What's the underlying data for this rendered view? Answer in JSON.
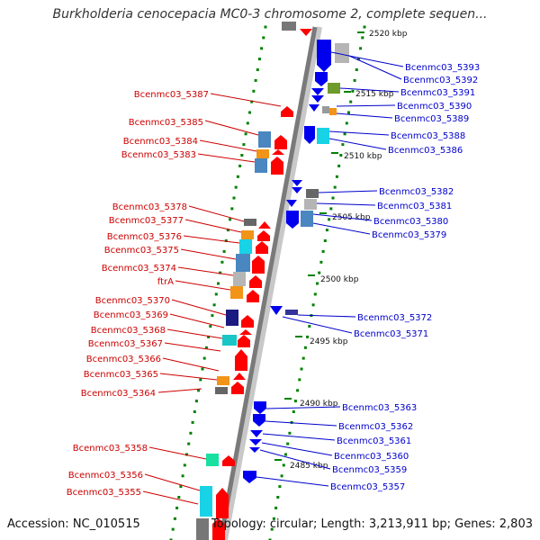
{
  "title": "Burkholderia cenocepacia MC0-3 chromosome 2, complete sequen...",
  "accession": "Accession: NC_010515",
  "topology": "Topology: circular; Length: 3,213,911 bp; Genes: 2,803",
  "colors": {
    "forward": "#ff0000",
    "reverse": "#0000ff",
    "label_left": "#cc0000",
    "label_right": "#0000cc",
    "backbone": "#808080",
    "tick": "#008000"
  },
  "kbp_labels": [
    {
      "text": "2520 kbp"
    },
    {
      "text": "2515 kbp"
    },
    {
      "text": "2510 kbp"
    },
    {
      "text": "2505 kbp"
    },
    {
      "text": "2500 kbp"
    },
    {
      "text": "2495 kbp"
    },
    {
      "text": "2490 kbp"
    },
    {
      "text": "2485 kbp"
    }
  ],
  "left_genes": [
    "Bcenmc03_5387",
    "Bcenmc03_5385",
    "Bcenmc03_5384",
    "Bcenmc03_5383",
    "Bcenmc03_5378",
    "Bcenmc03_5377",
    "Bcenmc03_5376",
    "Bcenmc03_5375",
    "Bcenmc03_5374",
    "ftrA",
    "Bcenmc03_5370",
    "Bcenmc03_5369",
    "Bcenmc03_5368",
    "Bcenmc03_5367",
    "Bcenmc03_5366",
    "Bcenmc03_5365",
    "Bcenmc03_5364",
    "Bcenmc03_5358",
    "Bcenmc03_5356",
    "Bcenmc03_5355"
  ],
  "right_genes": [
    "Bcenmc03_5393",
    "Bcenmc03_5392",
    "Bcenmc03_5391",
    "Bcenmc03_5390",
    "Bcenmc03_5389",
    "Bcenmc03_5388",
    "Bcenmc03_5386",
    "Bcenmc03_5382",
    "Bcenmc03_5381",
    "Bcenmc03_5380",
    "Bcenmc03_5379",
    "Bcenmc03_5372",
    "Bcenmc03_5371",
    "Bcenmc03_5363",
    "Bcenmc03_5362",
    "Bcenmc03_5361",
    "Bcenmc03_5360",
    "Bcenmc03_5359",
    "Bcenmc03_5357"
  ]
}
